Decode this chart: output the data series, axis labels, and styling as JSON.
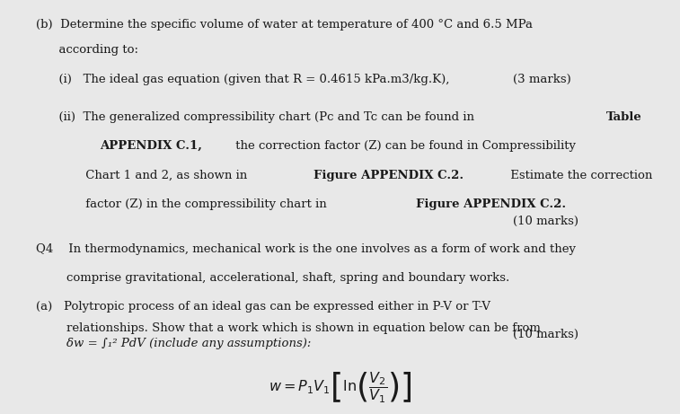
{
  "bg_color": "#e8e8e8",
  "text_color": "#1a1a1a",
  "fs": 9.5,
  "b_line1": "(b)  Determine the specific volume of water at temperature of 400 °C and 6.5 MPa",
  "b_line2": "      according to:",
  "i_line": "      (i)   The ideal gas equation (given that R = 0.4615 kPa.m3/kg.K),",
  "marks3": "(3 marks)",
  "ii_pre1": "      (ii)  The generalized compressibility chart (Pc and Tc can be found in ",
  "ii_bold1": "Table",
  "ii_pre2a": "             ",
  "ii_bold2a": "APPENDIX C.1,",
  "ii_suf2a": " the correction factor (Z) can be found in Compressibility",
  "ii_pre3": "             Chart 1 and 2, as shown in ",
  "ii_bold3": "Figure APPENDIX C.2.",
  "ii_suf3": " Estimate the correction",
  "ii_pre4": "             factor (Z) in the compressibility chart in ",
  "ii_bold4": "Figure APPENDIX C.2.",
  "marks10a": "(10 marks)",
  "q4_line1": "Q4    In thermodynamics, mechanical work is the one involves as a form of work and they",
  "q4_line2": "        comprise gravitational, accelerational, shaft, spring and boundary works.",
  "a_line1": "(a)   Polytropic process of an ideal gas can be expressed either in P-V or T-V",
  "a_line2": "        relationships. Show that a work which is shown in equation below can be from",
  "delta_line": "        δw = ∫₁² PdV (include any assumptions):",
  "marks10b": "(10 marks)"
}
